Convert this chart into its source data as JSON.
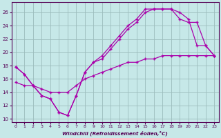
{
  "xlabel": "Windchill (Refroidissement éolien,°C)",
  "bg_color": "#c6e8e8",
  "line_color": "#aa00aa",
  "grid_color": "#9bbcbc",
  "xlim": [
    -0.5,
    23.5
  ],
  "ylim": [
    9.5,
    27.5
  ],
  "yticks": [
    10,
    12,
    14,
    16,
    18,
    20,
    22,
    24,
    26
  ],
  "xticks": [
    0,
    1,
    2,
    3,
    4,
    5,
    6,
    7,
    8,
    9,
    10,
    11,
    12,
    13,
    14,
    15,
    16,
    17,
    18,
    19,
    20,
    21,
    22,
    23
  ],
  "line1_x": [
    0,
    1,
    2,
    3,
    4,
    5,
    6,
    7,
    8,
    9,
    10,
    11,
    12,
    13,
    14,
    15,
    16,
    17,
    18,
    19,
    20,
    21,
    22,
    23
  ],
  "line1_y": [
    17.8,
    16.7,
    15.0,
    13.5,
    13.0,
    11.0,
    10.5,
    13.5,
    17.0,
    18.5,
    19.0,
    20.5,
    22.0,
    23.5,
    24.5,
    26.0,
    26.5,
    26.5,
    26.5,
    26.0,
    25.0,
    21.0,
    21.0,
    19.5
  ],
  "line2_x": [
    0,
    1,
    2,
    3,
    4,
    5,
    6,
    7,
    8,
    9,
    10,
    11,
    12,
    13,
    14,
    15,
    16,
    17,
    18,
    19,
    20,
    21,
    22,
    23
  ],
  "line2_y": [
    17.8,
    16.7,
    15.0,
    13.5,
    13.0,
    11.0,
    10.5,
    13.5,
    17.0,
    18.5,
    19.5,
    21.0,
    22.5,
    24.0,
    25.0,
    26.5,
    26.5,
    26.5,
    26.5,
    25.0,
    24.5,
    24.5,
    21.0,
    19.5
  ],
  "line3_x": [
    0,
    1,
    2,
    3,
    4,
    5,
    6,
    7,
    8,
    9,
    10,
    11,
    12,
    13,
    14,
    15,
    16,
    17,
    18,
    19,
    20,
    21,
    22,
    23
  ],
  "line3_y": [
    15.5,
    15.0,
    15.0,
    14.5,
    14.0,
    14.0,
    14.0,
    15.0,
    16.0,
    16.5,
    17.0,
    17.5,
    18.0,
    18.5,
    18.5,
    19.0,
    19.0,
    19.5,
    19.5,
    19.5,
    19.5,
    19.5,
    19.5,
    19.5
  ]
}
